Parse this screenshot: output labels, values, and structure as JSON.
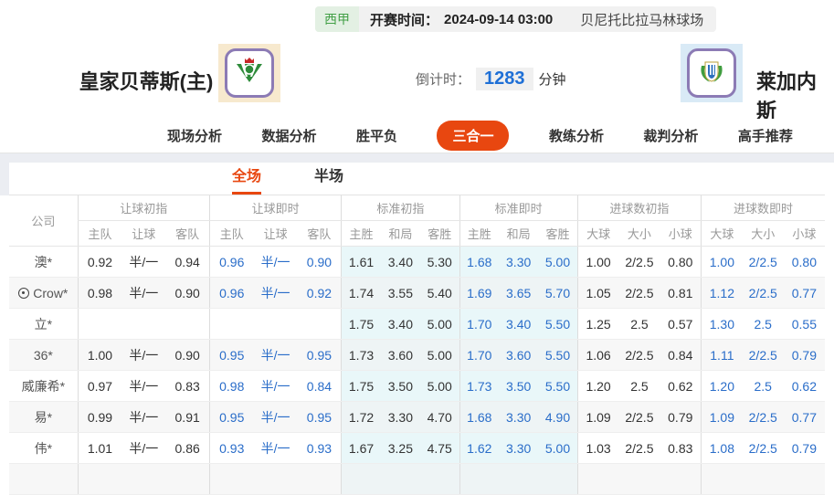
{
  "match_header": {
    "league": "西甲",
    "kickoff_label": "开赛时间：",
    "kickoff_time": "2024-09-14 03:00",
    "venue": "贝尼托比拉马林球场",
    "home_team": "皇家贝蒂斯(主)",
    "away_team": "莱加内斯",
    "countdown_label": "倒计时：",
    "countdown_value": "1283",
    "countdown_unit": "分钟"
  },
  "nav": {
    "tabs": [
      {
        "label": "现场分析",
        "active": false
      },
      {
        "label": "数据分析",
        "active": false
      },
      {
        "label": "胜平负",
        "active": false
      },
      {
        "label": "三合一",
        "active": true
      },
      {
        "label": "教练分析",
        "active": false
      },
      {
        "label": "裁判分析",
        "active": false
      },
      {
        "label": "高手推荐",
        "active": false
      }
    ]
  },
  "subnav": {
    "tabs": [
      {
        "label": "全场",
        "active": true
      },
      {
        "label": "半场",
        "active": false
      }
    ]
  },
  "odds_table": {
    "company_header": "公司",
    "groups": [
      {
        "key": "handicap_initial",
        "label": "让球初指",
        "cols": [
          "主队",
          "让球",
          "客队"
        ],
        "cyan": false,
        "blue": false
      },
      {
        "key": "handicap_live",
        "label": "让球即时",
        "cols": [
          "主队",
          "让球",
          "客队"
        ],
        "cyan": false,
        "blue": true
      },
      {
        "key": "std_initial",
        "label": "标准初指",
        "cols": [
          "主胜",
          "和局",
          "客胜"
        ],
        "cyan": true,
        "blue": false
      },
      {
        "key": "std_live",
        "label": "标准即时",
        "cols": [
          "主胜",
          "和局",
          "客胜"
        ],
        "cyan": true,
        "blue": true
      },
      {
        "key": "goals_initial",
        "label": "进球数初指",
        "cols": [
          "大球",
          "大小",
          "小球"
        ],
        "cyan": false,
        "blue": false
      },
      {
        "key": "goals_live",
        "label": "进球数即时",
        "cols": [
          "大球",
          "大小",
          "小球"
        ],
        "cyan": false,
        "blue": true
      }
    ],
    "rows": [
      {
        "company": "澳*",
        "has_icon": false,
        "handicap_initial": [
          "0.92",
          "半/一",
          "0.94"
        ],
        "handicap_live": [
          "0.96",
          "半/一",
          "0.90"
        ],
        "std_initial": [
          "1.61",
          "3.40",
          "5.30"
        ],
        "std_live": [
          "1.68",
          "3.30",
          "5.00"
        ],
        "goals_initial": [
          "1.00",
          "2/2.5",
          "0.80"
        ],
        "goals_live": [
          "1.00",
          "2/2.5",
          "0.80"
        ]
      },
      {
        "company": "Crow*",
        "has_icon": true,
        "handicap_initial": [
          "0.98",
          "半/一",
          "0.90"
        ],
        "handicap_live": [
          "0.96",
          "半/一",
          "0.92"
        ],
        "std_initial": [
          "1.74",
          "3.55",
          "5.40"
        ],
        "std_live": [
          "1.69",
          "3.65",
          "5.70"
        ],
        "goals_initial": [
          "1.05",
          "2/2.5",
          "0.81"
        ],
        "goals_live": [
          "1.12",
          "2/2.5",
          "0.77"
        ]
      },
      {
        "company": "立*",
        "has_icon": false,
        "handicap_initial": [
          "",
          "",
          ""
        ],
        "handicap_live": [
          "",
          "",
          ""
        ],
        "std_initial": [
          "1.75",
          "3.40",
          "5.00"
        ],
        "std_live": [
          "1.70",
          "3.40",
          "5.50"
        ],
        "goals_initial": [
          "1.25",
          "2.5",
          "0.57"
        ],
        "goals_live": [
          "1.30",
          "2.5",
          "0.55"
        ]
      },
      {
        "company": "36*",
        "has_icon": false,
        "handicap_initial": [
          "1.00",
          "半/一",
          "0.90"
        ],
        "handicap_live": [
          "0.95",
          "半/一",
          "0.95"
        ],
        "std_initial": [
          "1.73",
          "3.60",
          "5.00"
        ],
        "std_live": [
          "1.70",
          "3.60",
          "5.50"
        ],
        "goals_initial": [
          "1.06",
          "2/2.5",
          "0.84"
        ],
        "goals_live": [
          "1.11",
          "2/2.5",
          "0.79"
        ]
      },
      {
        "company": "威廉希*",
        "has_icon": false,
        "handicap_initial": [
          "0.97",
          "半/一",
          "0.83"
        ],
        "handicap_live": [
          "0.98",
          "半/一",
          "0.84"
        ],
        "std_initial": [
          "1.75",
          "3.50",
          "5.00"
        ],
        "std_live": [
          "1.73",
          "3.50",
          "5.50"
        ],
        "goals_initial": [
          "1.20",
          "2.5",
          "0.62"
        ],
        "goals_live": [
          "1.20",
          "2.5",
          "0.62"
        ]
      },
      {
        "company": "易*",
        "has_icon": false,
        "handicap_initial": [
          "0.99",
          "半/一",
          "0.91"
        ],
        "handicap_live": [
          "0.95",
          "半/一",
          "0.95"
        ],
        "std_initial": [
          "1.72",
          "3.30",
          "4.70"
        ],
        "std_live": [
          "1.68",
          "3.30",
          "4.90"
        ],
        "goals_initial": [
          "1.09",
          "2/2.5",
          "0.79"
        ],
        "goals_live": [
          "1.09",
          "2/2.5",
          "0.77"
        ]
      },
      {
        "company": "伟*",
        "has_icon": false,
        "handicap_initial": [
          "1.01",
          "半/一",
          "0.86"
        ],
        "handicap_live": [
          "0.93",
          "半/一",
          "0.93"
        ],
        "std_initial": [
          "1.67",
          "3.25",
          "4.75"
        ],
        "std_live": [
          "1.62",
          "3.30",
          "5.00"
        ],
        "goals_initial": [
          "1.03",
          "2/2.5",
          "0.83"
        ],
        "goals_live": [
          "1.08",
          "2/2.5",
          "0.79"
        ]
      }
    ]
  },
  "colors": {
    "accent": "#e84710",
    "odds_live_blue": "#2a6dc9",
    "league_green": "#43a047",
    "countdown_blue": "#1e6fd6",
    "band_gray": "#ebedf2",
    "cyan_col": "#e9f7f9"
  }
}
